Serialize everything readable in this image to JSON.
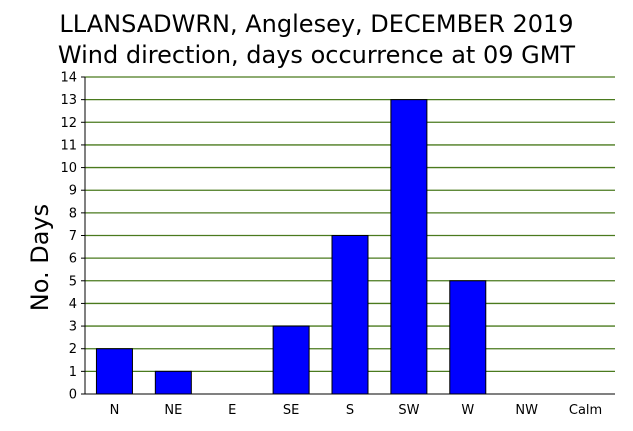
{
  "chart_data": {
    "type": "bar",
    "title": "LLANSADWRN, Anglesey, DECEMBER 2019",
    "subtitle": "Wind direction, days occurrence at 09 GMT",
    "ylabel": "No. Days",
    "xlabel": "",
    "categories": [
      "N",
      "NE",
      "E",
      "SE",
      "S",
      "SW",
      "W",
      "NW",
      "Calm"
    ],
    "values": [
      2,
      1,
      0,
      3,
      7,
      13,
      5,
      0,
      0
    ],
    "ylim": [
      0,
      14
    ],
    "yticks": [
      0,
      1,
      2,
      3,
      4,
      5,
      6,
      7,
      8,
      9,
      10,
      11,
      12,
      13,
      14
    ],
    "grid": true,
    "legend": "none",
    "colors": {
      "bar": "#0000ff",
      "bar_edge": "#000000",
      "grid": "#4a7a1e",
      "axis": "#000000"
    }
  }
}
